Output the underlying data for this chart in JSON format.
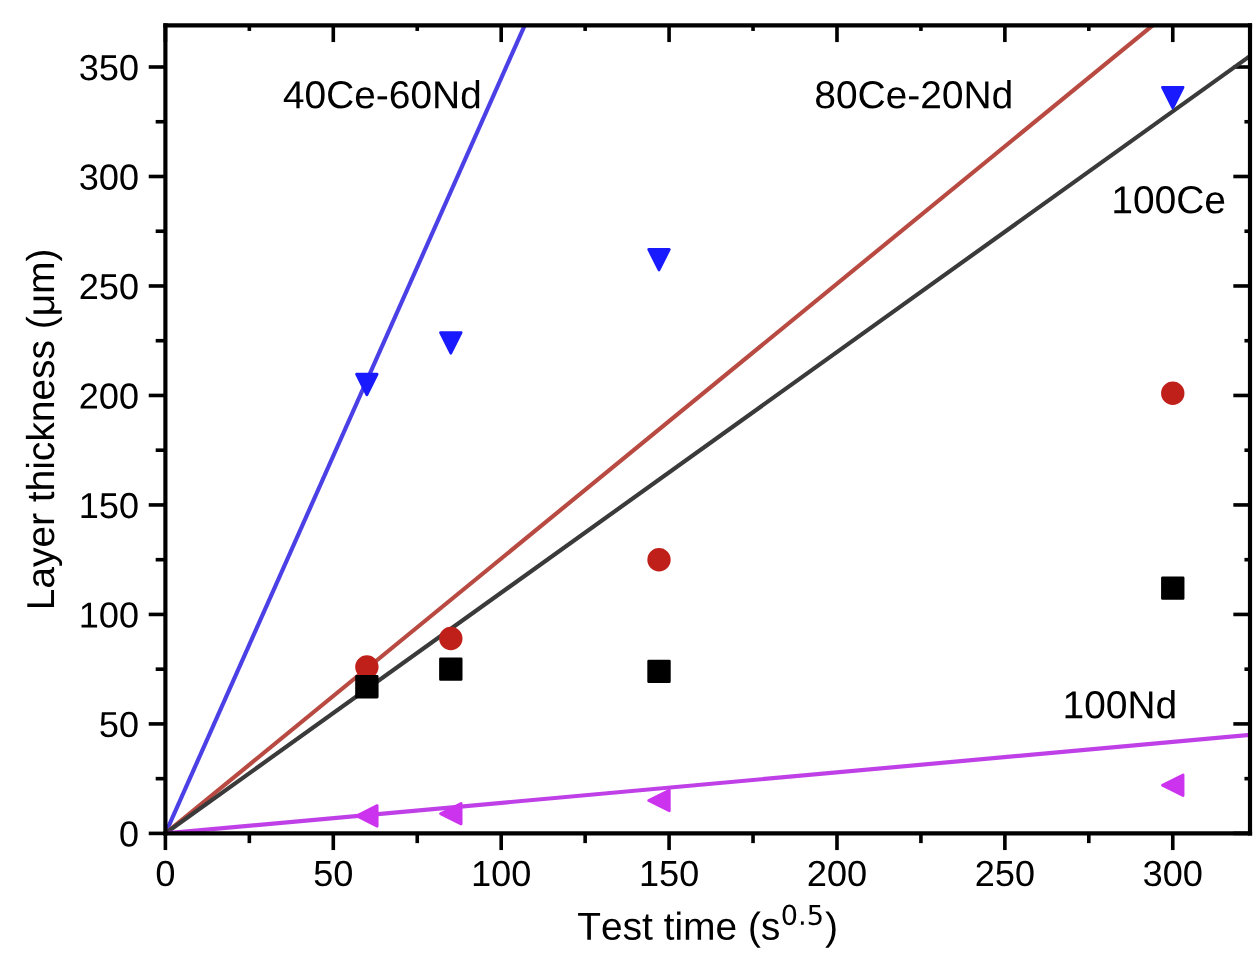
{
  "chart_data": {
    "type": "scatter",
    "xlabel": "Test time (s$^{0.5}$)",
    "ylabel": "Layer thickness (μm)",
    "x": [
      60,
      85,
      147,
      300
    ],
    "series": [
      {
        "marker": "triangle_down",
        "color": "#1a1aff",
        "values": [
          205,
          224,
          262,
          336
        ]
      },
      {
        "marker": "circle",
        "color": "#c0201a",
        "values": [
          76,
          89,
          125,
          201
        ]
      },
      {
        "marker": "square",
        "color": "#000000",
        "values": [
          67,
          75,
          74,
          112
        ]
      },
      {
        "marker": "triangle_left",
        "color": "#cc33ee",
        "values": [
          8,
          9,
          15,
          22
        ]
      },
      {
        "type": "line",
        "color": "#4b3fe6",
        "x": [
          0,
          107
        ],
        "values": [
          0,
          369
        ]
      },
      {
        "type": "line",
        "color": "#b84a42",
        "x": [
          0,
          294
        ],
        "values": [
          0,
          369
        ]
      },
      {
        "type": "line",
        "color": "#3a3a3a",
        "x": [
          0,
          323
        ],
        "values": [
          0,
          355
        ]
      },
      {
        "type": "line",
        "color": "#c040e8",
        "x": [
          0,
          323
        ],
        "values": [
          0,
          45
        ]
      }
    ],
    "annotations": [
      "40Ce-60Nd",
      "80Ce-20Nd",
      "100Ce",
      "100Nd"
    ],
    "xlim": [
      0,
      323
    ],
    "ylim": [
      0,
      369
    ],
    "xticks": [
      0,
      {
        "value": 25,
        "label": null
      },
      50,
      {
        "value": 75,
        "label": null
      },
      100,
      {
        "value": 125,
        "label": null
      },
      150,
      {
        "value": 175,
        "label": null
      },
      200,
      {
        "value": 225,
        "label": null
      },
      250,
      {
        "value": 275,
        "label": null
      },
      300
    ],
    "yticks": [
      0,
      {
        "value": 25,
        "label": null
      },
      50,
      {
        "value": 75,
        "label": null
      },
      100,
      {
        "value": 125,
        "label": null
      },
      150,
      {
        "value": 175,
        "label": null
      },
      200,
      {
        "value": 225,
        "label": null
      },
      250,
      {
        "value": 275,
        "label": null
      },
      300,
      {
        "value": 325,
        "label": null
      },
      350
    ],
    "grid": false,
    "legend": false
  }
}
